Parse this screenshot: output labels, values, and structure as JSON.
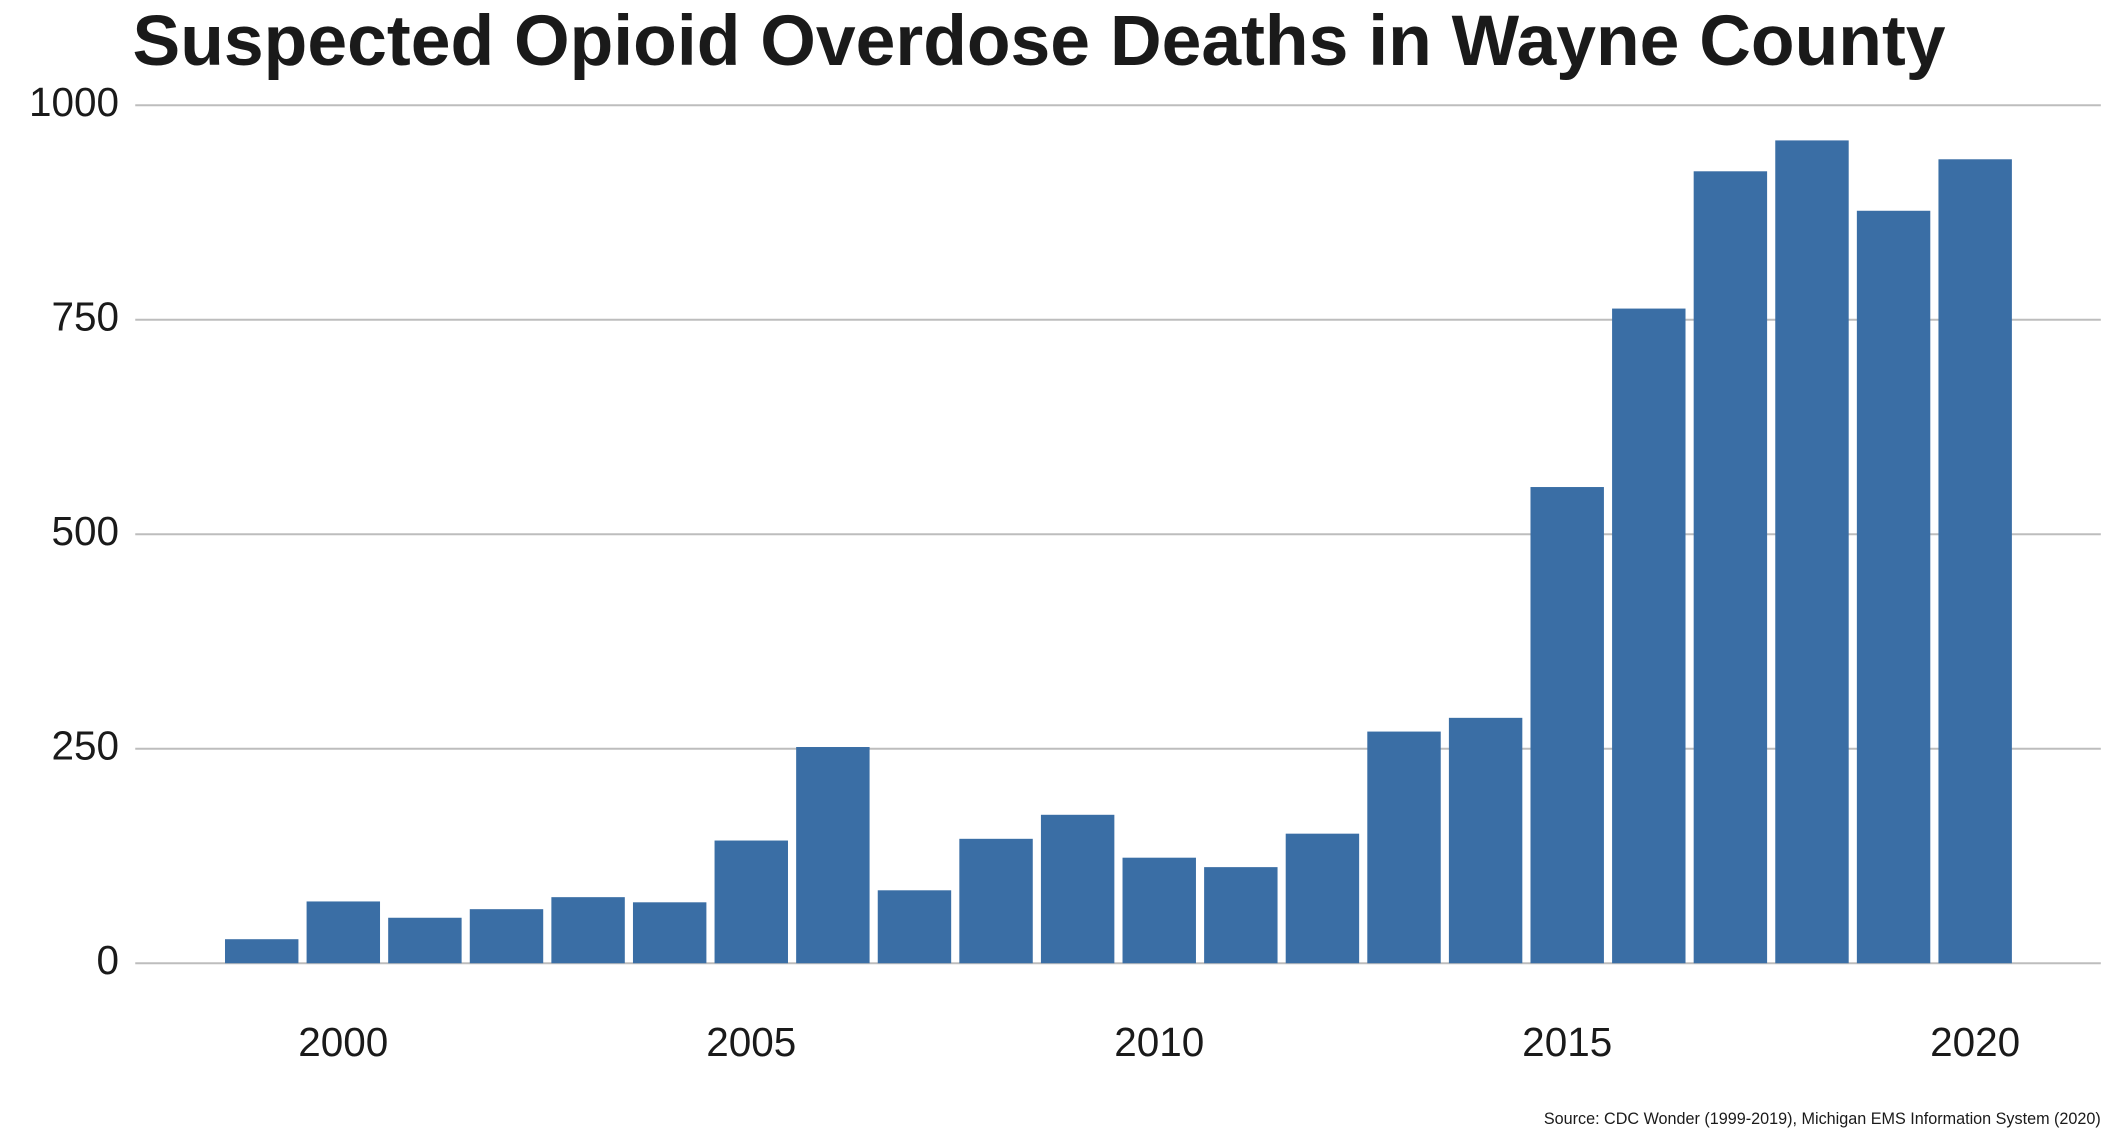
{
  "chart_data": {
    "type": "bar",
    "title": "Suspected Opioid Overdose Deaths in Wayne County",
    "source": "Source: CDC Wonder (1999-2019), Michigan EMS Information System (2020)",
    "x": [
      1999,
      2000,
      2001,
      2002,
      2003,
      2004,
      2005,
      2006,
      2007,
      2008,
      2009,
      2010,
      2011,
      2012,
      2013,
      2014,
      2015,
      2016,
      2017,
      2018,
      2019,
      2020
    ],
    "values": [
      28,
      72,
      53,
      63,
      77,
      71,
      143,
      252,
      85,
      145,
      173,
      123,
      112,
      151,
      270,
      286,
      555,
      763,
      923,
      959,
      877,
      937
    ],
    "color": "#3a6ea5",
    "xlim": [
      1997.45,
      2021.54
    ],
    "xticks": [
      2000,
      2005,
      2010,
      2015,
      2020
    ],
    "ylim": [
      0,
      1000
    ],
    "yticks": [
      0,
      250,
      500,
      750,
      1000
    ],
    "grid": true
  }
}
